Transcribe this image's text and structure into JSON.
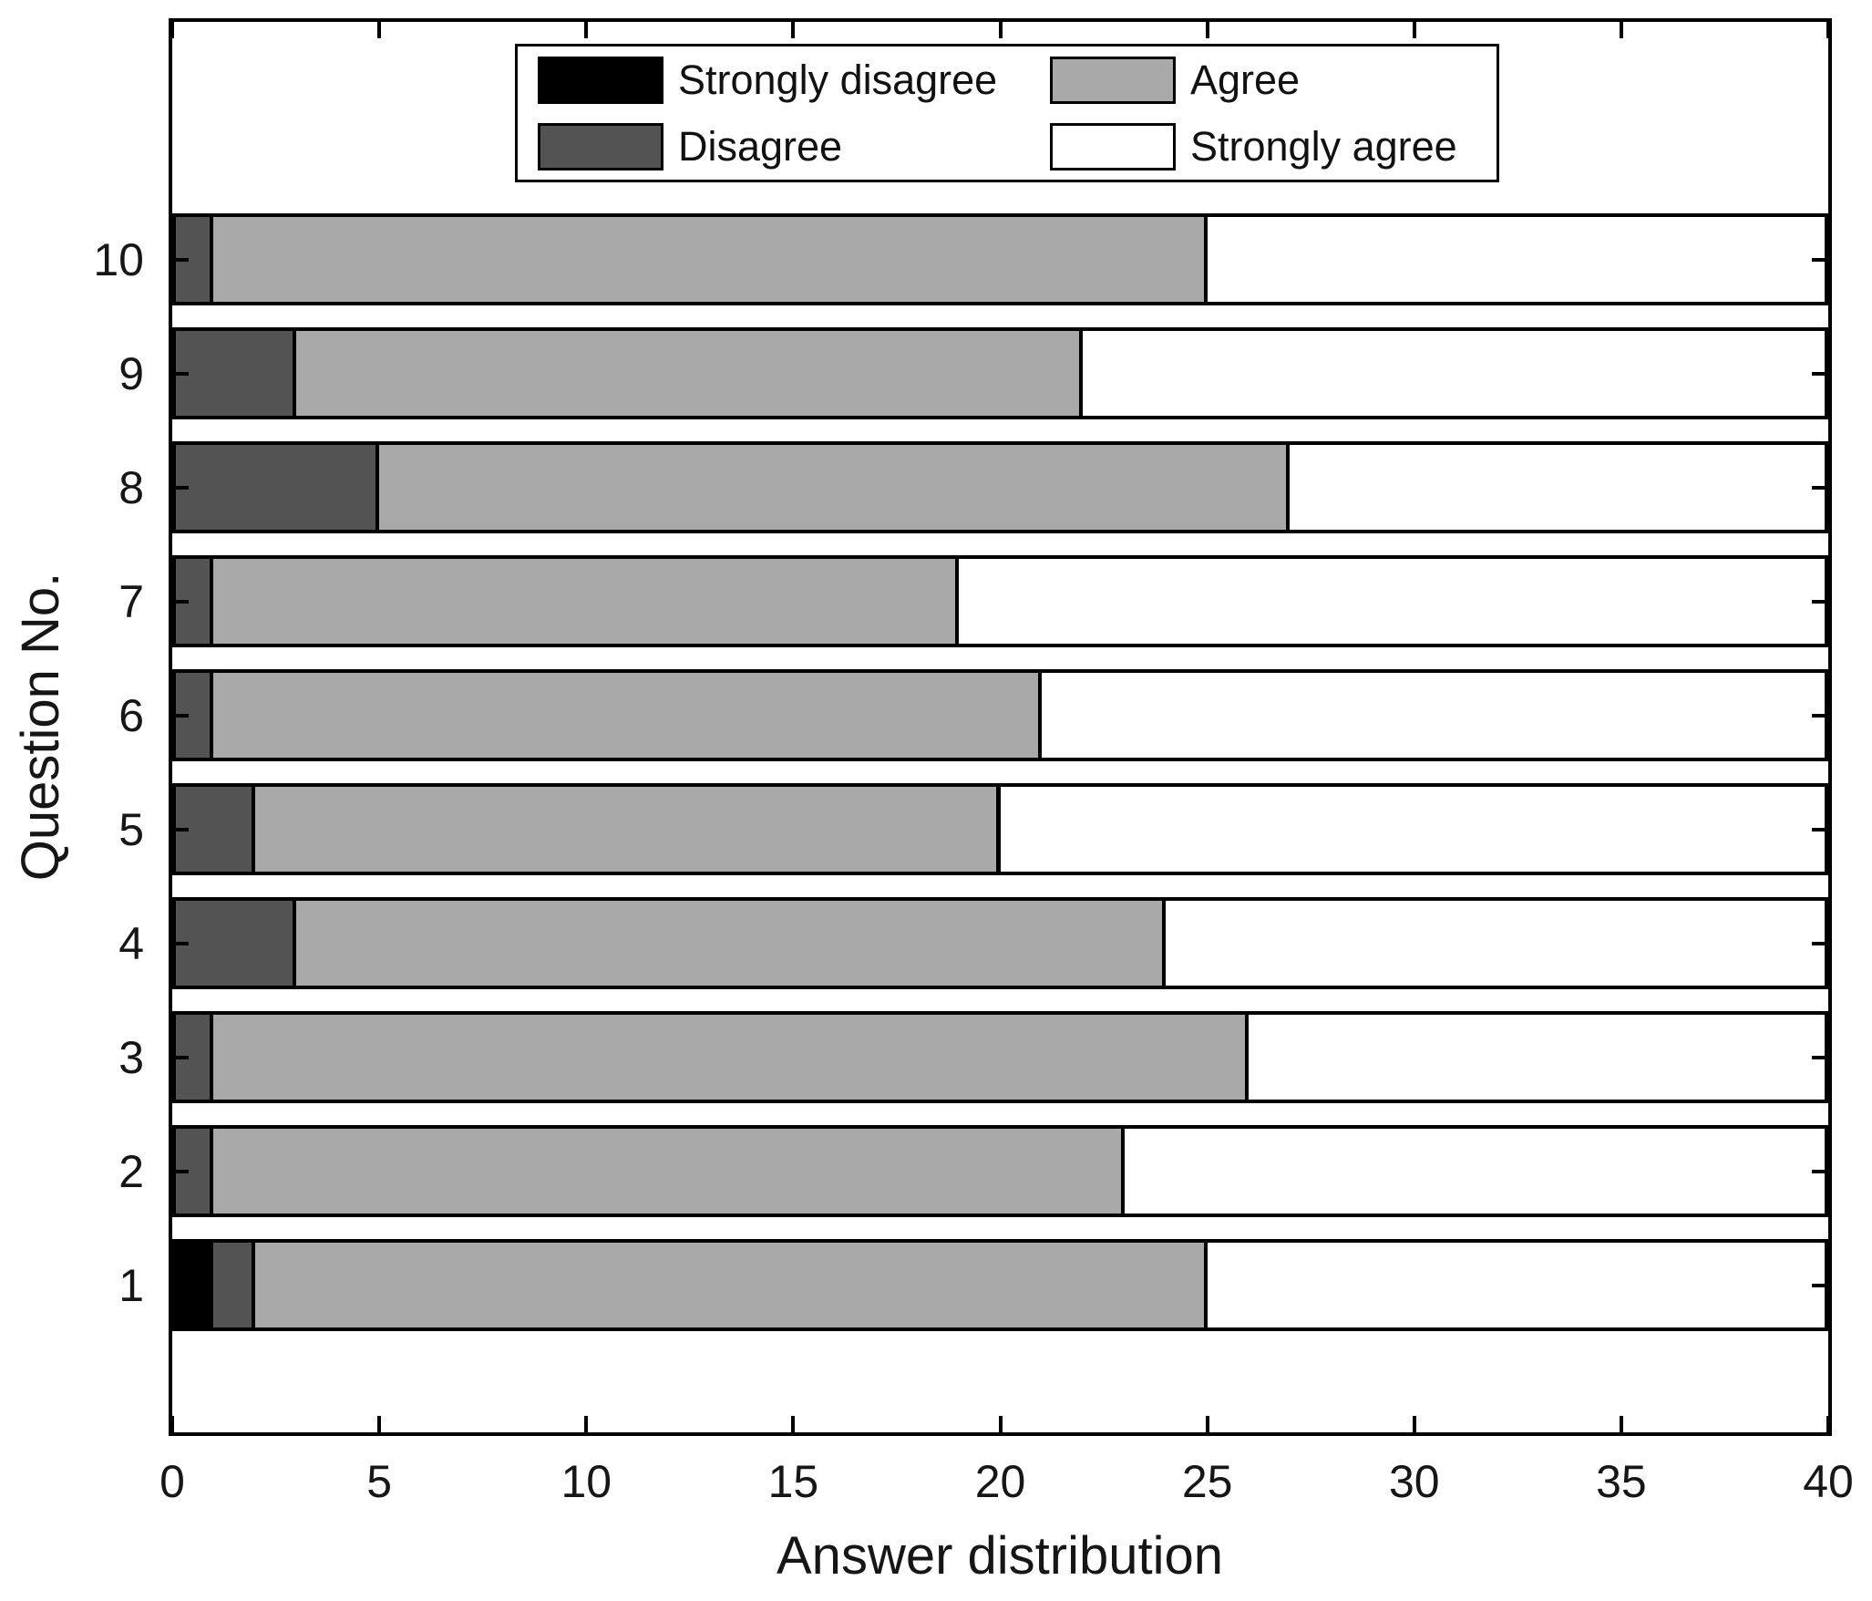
{
  "chart_data": {
    "type": "bar",
    "orientation": "horizontal",
    "stacked": true,
    "title": "",
    "xlabel": "Answer distribution",
    "ylabel": "Question No.",
    "categories": [
      "1",
      "2",
      "3",
      "4",
      "5",
      "6",
      "7",
      "8",
      "9",
      "10"
    ],
    "series": [
      {
        "name": "Strongly disagree",
        "color": "#000000",
        "values": [
          1,
          0,
          0,
          0,
          0,
          0,
          0,
          0,
          0,
          0
        ]
      },
      {
        "name": "Disagree",
        "color": "#535353",
        "values": [
          1,
          1,
          1,
          3,
          2,
          1,
          1,
          5,
          3,
          1
        ]
      },
      {
        "name": "Agree",
        "color": "#a9a9a9",
        "values": [
          23,
          22,
          25,
          21,
          18,
          20,
          18,
          22,
          19,
          24
        ]
      },
      {
        "name": "Strongly agree",
        "color": "#ffffff",
        "values": [
          15,
          17,
          14,
          16,
          20,
          19,
          21,
          13,
          18,
          15
        ]
      }
    ],
    "totals_per_category": [
      40,
      40,
      40,
      40,
      40,
      40,
      40,
      40,
      40,
      40
    ],
    "xlim": [
      0,
      40
    ],
    "xticks": [
      0,
      5,
      10,
      15,
      20,
      25,
      30,
      35,
      40
    ],
    "grid": false,
    "bar_edge_color": "#000000",
    "legend_position": "top-inside",
    "legend_columns": 2
  }
}
